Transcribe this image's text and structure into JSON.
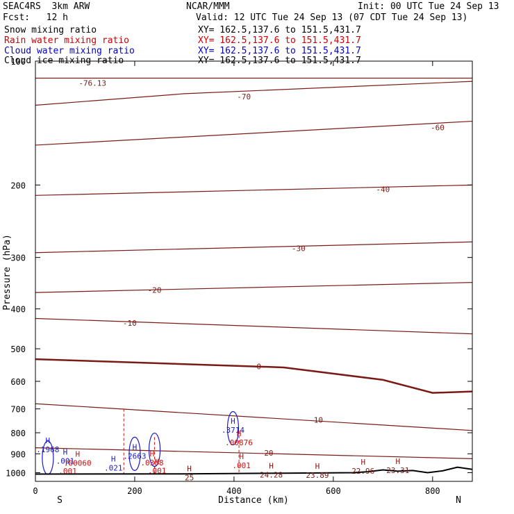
{
  "header": {
    "model": "SEAC4RS  3km ARW",
    "org": "NCAR/MMM",
    "init": "Init: 00 UTC Tue 24 Sep 13",
    "fcst": "Fcst:   12 h",
    "valid": "Valid: 12 UTC Tue 24 Sep 13 (07 CDT Tue 24 Sep 13)",
    "fields": [
      {
        "label": "Snow mixing ratio",
        "xy": "XY= 162.5,137.6 to 151.5,431.7",
        "color": "#000000"
      },
      {
        "label": "Rain water mixing ratio",
        "xy": "XY= 162.5,137.6 to 151.5,431.7",
        "color": "#cc0000"
      },
      {
        "label": "Cloud water mixing ratio",
        "xy": "XY= 162.5,137.6 to 151.5,431.7",
        "color": "#0000cc"
      },
      {
        "label": "Cloud ice mixing ratio",
        "xy": "XY= 162.5,137.6 to 151.5,431.7",
        "color": "#000000"
      }
    ]
  },
  "chart_data": {
    "type": "line",
    "xlabel": "Distance (km)",
    "ylabel": "Pressure (hPa)",
    "xlim": [
      0,
      880
    ],
    "ylim": [
      1050,
      100
    ],
    "y_log_scale": true,
    "xticks": [
      "0",
      "200",
      "400",
      "600",
      "800"
    ],
    "yticks": [
      "100",
      "200",
      "300",
      "400",
      "500",
      "600",
      "700",
      "800",
      "900",
      "1000"
    ],
    "x_end_labels": {
      "left": "S",
      "right": "N"
    },
    "colors": {
      "temperature": "#7a1a14",
      "rain": "#cc1111",
      "cloud_water": "#1a1acc",
      "snow": "#000000",
      "terrain": "#000000"
    },
    "temperature_isotherms": [
      {
        "label": "-76.13",
        "x": [
          0,
          880
        ],
        "y": [
          110,
          110
        ]
      },
      {
        "label": "-70",
        "x": [
          0,
          300,
          880
        ],
        "y": [
          128,
          120,
          112
        ]
      },
      {
        "label": "-60",
        "x": [
          0,
          880
        ],
        "y": [
          160,
          140
        ]
      },
      {
        "label": "-40",
        "x": [
          0,
          880
        ],
        "y": [
          212,
          200
        ]
      },
      {
        "label": "-30",
        "x": [
          0,
          880
        ],
        "y": [
          292,
          275
        ]
      },
      {
        "label": "-20",
        "x": [
          0,
          880
        ],
        "y": [
          365,
          345
        ]
      },
      {
        "label": "-10",
        "x": [
          0,
          880
        ],
        "y": [
          422,
          460
        ]
      },
      {
        "label": "0",
        "x": [
          0,
          300,
          500,
          700,
          800,
          880
        ],
        "y": [
          530,
          545,
          555,
          595,
          640,
          635
        ]
      },
      {
        "label": "10",
        "x": [
          0,
          880
        ],
        "y": [
          680,
          790
        ]
      },
      {
        "label": "20",
        "x": [
          0,
          880
        ],
        "y": [
          870,
          925
        ]
      }
    ],
    "contour_labels": [
      {
        "text": "-76.13",
        "x": 115,
        "p": 113,
        "series": "temperature"
      },
      {
        "text": "-70",
        "x": 420,
        "p": 122,
        "series": "temperature"
      },
      {
        "text": "-60",
        "x": 810,
        "p": 145,
        "series": "temperature"
      },
      {
        "text": "-40",
        "x": 700,
        "p": 205,
        "series": "temperature"
      },
      {
        "text": "-30",
        "x": 530,
        "p": 285,
        "series": "temperature"
      },
      {
        "text": "-20",
        "x": 240,
        "p": 360,
        "series": "temperature"
      },
      {
        "text": "-10",
        "x": 190,
        "p": 433,
        "series": "temperature"
      },
      {
        "text": "0",
        "x": 450,
        "p": 552,
        "series": "temperature"
      },
      {
        "text": "10",
        "x": 570,
        "p": 745,
        "series": "temperature"
      },
      {
        "text": "20",
        "x": 470,
        "p": 895,
        "series": "temperature"
      }
    ],
    "max_markers": [
      {
        "text": "H",
        "value": ".1968",
        "x": 25,
        "p": 868,
        "series": "cloud_water"
      },
      {
        "text": "H",
        "value": ".001",
        "x": 60,
        "p": 925,
        "series": "cloud_water"
      },
      {
        "text": "H",
        "value": ".00060",
        "x": 85,
        "p": 936,
        "series": "rain"
      },
      {
        "text": "H",
        "value": ".001",
        "x": 65,
        "p": 980,
        "series": "rain"
      },
      {
        "text": "H",
        "value": ".021",
        "x": 157,
        "p": 963,
        "series": "cloud_water"
      },
      {
        "text": "H",
        "value": ".2663",
        "x": 200,
        "p": 900,
        "series": "cloud_water"
      },
      {
        "text": "H",
        "value": ".0358",
        "x": 235,
        "p": 935,
        "series": "rain"
      },
      {
        "text": "H",
        "value": ".001",
        "x": 245,
        "p": 978,
        "series": "rain"
      },
      {
        "text": "H",
        "value": ".3714",
        "x": 398,
        "p": 778,
        "series": "cloud_water"
      },
      {
        "text": "H",
        "value": ".00876",
        "x": 410,
        "p": 835,
        "series": "rain"
      },
      {
        "text": "H",
        "value": ".001",
        "x": 415,
        "p": 950,
        "series": "rain"
      },
      {
        "text": "H",
        "value": "25",
        "x": 310,
        "p": 1015,
        "series": "temperature"
      },
      {
        "text": "H",
        "value": "24.28",
        "x": 475,
        "p": 1000,
        "series": "temperature"
      },
      {
        "text": "H",
        "value": "23.89",
        "x": 568,
        "p": 1003,
        "series": "temperature"
      },
      {
        "text": "H",
        "value": "22.96",
        "x": 660,
        "p": 980,
        "series": "temperature"
      },
      {
        "text": "H",
        "value": "23.31",
        "x": 730,
        "p": 975,
        "series": "temperature"
      }
    ],
    "terrain": {
      "x": [
        0,
        300,
        500,
        640,
        670,
        700,
        730,
        760,
        790,
        820,
        850,
        880
      ],
      "y": [
        1008,
        1007,
        1003,
        1000,
        995,
        985,
        992,
        988,
        1000,
        990,
        970,
        982
      ]
    }
  }
}
